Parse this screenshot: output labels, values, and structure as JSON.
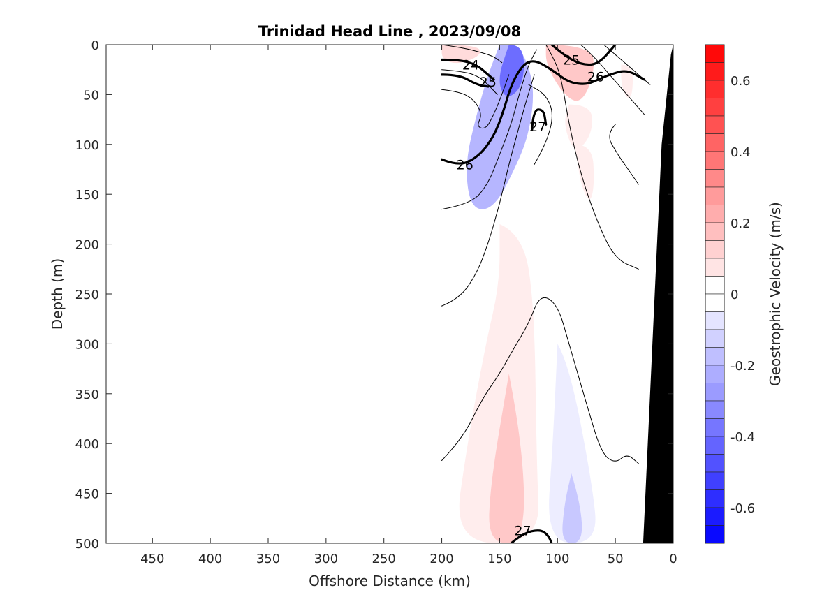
{
  "chart_data": {
    "type": "heatmap",
    "title": "Trinidad Head Line , 2023/09/08",
    "xlabel": "Offshore Distance (km)",
    "ylabel": "Depth (m)",
    "xlim": [
      490,
      0
    ],
    "ylim": [
      500,
      0
    ],
    "x_reversed": true,
    "y_reversed": true,
    "x_ticks": [
      "450",
      "400",
      "350",
      "300",
      "250",
      "200",
      "150",
      "100",
      "50",
      "0"
    ],
    "y_ticks": [
      "0",
      "50",
      "100",
      "150",
      "200",
      "250",
      "300",
      "350",
      "400",
      "450",
      "500"
    ],
    "colorbar": {
      "label": "Geostrophic Velocity (m/s)",
      "range": [
        -0.7,
        0.7
      ],
      "step": 0.05,
      "ticks": [
        "0.6",
        "0.4",
        "0.2",
        "0",
        "-0.2",
        "-0.4",
        "-0.6"
      ],
      "tick_values": [
        0.6,
        0.4,
        0.2,
        0,
        -0.2,
        -0.4,
        -0.6
      ],
      "colormap": "blue-white-red",
      "negative_color": "#0000ff",
      "positive_color": "#ff0000"
    },
    "velocity_patches": [
      {
        "v": -0.2,
        "points": [
          [
            150,
            0
          ],
          [
            135,
            0
          ],
          [
            125,
            20
          ],
          [
            120,
            50
          ],
          [
            125,
            90
          ],
          [
            135,
            120
          ],
          [
            155,
            165
          ],
          [
            175,
            165
          ],
          [
            180,
            120
          ],
          [
            170,
            70
          ],
          [
            160,
            30
          ]
        ]
      },
      {
        "v": -0.4,
        "points": [
          [
            142,
            0
          ],
          [
            132,
            0
          ],
          [
            128,
            20
          ],
          [
            132,
            45
          ],
          [
            145,
            55
          ],
          [
            152,
            35
          ]
        ]
      },
      {
        "v": 0.1,
        "points": [
          [
            200,
            0
          ],
          [
            170,
            0
          ],
          [
            165,
            10
          ],
          [
            185,
            20
          ],
          [
            200,
            15
          ]
        ]
      },
      {
        "v": 0.15,
        "points": [
          [
            110,
            0
          ],
          [
            70,
            0
          ],
          [
            68,
            30
          ],
          [
            80,
            60
          ],
          [
            95,
            50
          ],
          [
            110,
            20
          ]
        ]
      },
      {
        "v": 0.05,
        "points": [
          [
            90,
            60
          ],
          [
            70,
            60
          ],
          [
            70,
            90
          ],
          [
            85,
            110
          ],
          [
            95,
            80
          ]
        ]
      },
      {
        "v": 0.05,
        "points": [
          [
            85,
            100
          ],
          [
            70,
            100
          ],
          [
            68,
            140
          ],
          [
            72,
            160
          ],
          [
            80,
            140
          ]
        ]
      },
      {
        "v": 0.05,
        "points": [
          [
            45,
            20
          ],
          [
            35,
            20
          ],
          [
            35,
            50
          ],
          [
            40,
            55
          ],
          [
            45,
            40
          ]
        ]
      },
      {
        "v": 0.05,
        "points": [
          [
            150,
            180
          ],
          [
            130,
            190
          ],
          [
            120,
            260
          ],
          [
            118,
            420
          ],
          [
            115,
            500
          ],
          [
            190,
            500
          ],
          [
            178,
            400
          ],
          [
            162,
            300
          ],
          [
            150,
            240
          ]
        ]
      },
      {
        "v": 0.15,
        "points": [
          [
            142,
            330
          ],
          [
            130,
            400
          ],
          [
            128,
            500
          ],
          [
            160,
            500
          ],
          [
            158,
            440
          ]
        ]
      },
      {
        "v": -0.05,
        "points": [
          [
            100,
            300
          ],
          [
            90,
            320
          ],
          [
            70,
            440
          ],
          [
            65,
            500
          ],
          [
            110,
            500
          ],
          [
            104,
            400
          ]
        ]
      },
      {
        "v": -0.15,
        "points": [
          [
            88,
            430
          ],
          [
            80,
            460
          ],
          [
            78,
            500
          ],
          [
            97,
            500
          ],
          [
            94,
            460
          ]
        ]
      }
    ],
    "density_contours": [
      {
        "level": 24,
        "heavy": true,
        "points": [
          [
            200,
            15
          ],
          [
            185,
            15
          ],
          [
            170,
            20
          ],
          [
            160,
            30
          ],
          [
            155,
            35
          ]
        ]
      },
      {
        "level": 25,
        "heavy": true,
        "points": [
          [
            200,
            30
          ],
          [
            185,
            30
          ],
          [
            170,
            40
          ],
          [
            160,
            42
          ]
        ]
      },
      {
        "level": 25,
        "heavy": true,
        "points": [
          [
            105,
            0
          ],
          [
            95,
            10
          ],
          [
            80,
            20
          ],
          [
            65,
            20
          ],
          [
            50,
            0
          ]
        ]
      },
      {
        "level": 26,
        "heavy": true,
        "points": [
          [
            200,
            115
          ],
          [
            185,
            122
          ],
          [
            168,
            112
          ],
          [
            155,
            92
          ],
          [
            147,
            68
          ],
          [
            140,
            40
          ],
          [
            130,
            20
          ],
          [
            120,
            15
          ],
          [
            105,
            25
          ],
          [
            90,
            38
          ],
          [
            75,
            40
          ],
          [
            65,
            35
          ],
          [
            55,
            30
          ],
          [
            40,
            25
          ],
          [
            25,
            35
          ]
        ]
      },
      {
        "level": 27,
        "heavy": true,
        "points": [
          [
            122,
            85
          ],
          [
            121,
            65
          ],
          [
            112,
            65
          ],
          [
            110,
            80
          ]
        ]
      },
      {
        "level": 27,
        "heavy": true,
        "points": [
          [
            140,
            500
          ],
          [
            130,
            490
          ],
          [
            115,
            486
          ],
          [
            108,
            492
          ],
          [
            105,
            500
          ]
        ]
      },
      {
        "level": 0,
        "heavy": false,
        "points": [
          [
            200,
            0
          ],
          [
            182,
            3
          ],
          [
            165,
            8
          ],
          [
            155,
            12
          ],
          [
            148,
            18
          ]
        ]
      },
      {
        "level": 0,
        "heavy": false,
        "points": [
          [
            200,
            25
          ],
          [
            180,
            27
          ],
          [
            168,
            32
          ],
          [
            160,
            40
          ],
          [
            152,
            50
          ]
        ]
      },
      {
        "level": 0,
        "heavy": false,
        "points": [
          [
            200,
            45
          ],
          [
            185,
            47
          ],
          [
            172,
            55
          ],
          [
            165,
            70
          ],
          [
            170,
            82
          ],
          [
            162,
            85
          ],
          [
            155,
            70
          ],
          [
            148,
            50
          ],
          [
            142,
            30
          ]
        ]
      },
      {
        "level": 0,
        "heavy": false,
        "points": [
          [
            200,
            165
          ],
          [
            175,
            160
          ],
          [
            160,
            140
          ],
          [
            150,
            110
          ],
          [
            140,
            80
          ],
          [
            132,
            45
          ],
          [
            125,
            20
          ],
          [
            118,
            5
          ]
        ]
      },
      {
        "level": 0,
        "heavy": false,
        "points": [
          [
            200,
            262
          ],
          [
            185,
            255
          ],
          [
            170,
            230
          ],
          [
            160,
            200
          ],
          [
            150,
            160
          ],
          [
            142,
            120
          ],
          [
            135,
            90
          ],
          [
            128,
            60
          ],
          [
            120,
            30
          ]
        ]
      },
      {
        "level": 0,
        "heavy": false,
        "points": [
          [
            120,
            120
          ],
          [
            110,
            100
          ],
          [
            103,
            70
          ],
          [
            110,
            50
          ],
          [
            125,
            40
          ]
        ]
      },
      {
        "level": 0,
        "heavy": false,
        "points": [
          [
            110,
            0
          ],
          [
            100,
            20
          ],
          [
            95,
            45
          ],
          [
            90,
            80
          ],
          [
            80,
            130
          ],
          [
            65,
            180
          ],
          [
            50,
            215
          ],
          [
            30,
            225
          ]
        ]
      },
      {
        "level": 0,
        "heavy": false,
        "points": [
          [
            80,
            0
          ],
          [
            70,
            10
          ],
          [
            55,
            30
          ],
          [
            40,
            50
          ],
          [
            25,
            70
          ]
        ]
      },
      {
        "level": 0,
        "heavy": false,
        "points": [
          [
            60,
            0
          ],
          [
            45,
            15
          ],
          [
            30,
            30
          ],
          [
            20,
            40
          ]
        ]
      },
      {
        "level": 0,
        "heavy": false,
        "points": [
          [
            50,
            80
          ],
          [
            58,
            90
          ],
          [
            48,
            110
          ],
          [
            42,
            120
          ],
          [
            30,
            140
          ]
        ]
      },
      {
        "level": 0,
        "heavy": false,
        "points": [
          [
            200,
            417
          ],
          [
            182,
            395
          ],
          [
            165,
            355
          ],
          [
            150,
            330
          ],
          [
            138,
            305
          ],
          [
            125,
            280
          ],
          [
            115,
            250
          ],
          [
            100,
            260
          ],
          [
            90,
            300
          ],
          [
            75,
            360
          ],
          [
            62,
            410
          ],
          [
            50,
            420
          ],
          [
            40,
            410
          ],
          [
            30,
            420
          ]
        ]
      }
    ],
    "contour_labels": [
      {
        "text": "24",
        "x": 175,
        "y": 20
      },
      {
        "text": "25",
        "x": 160,
        "y": 37
      },
      {
        "text": "25",
        "x": 88,
        "y": 15
      },
      {
        "text": "26",
        "x": 67,
        "y": 32
      },
      {
        "text": "27",
        "x": 117,
        "y": 82
      },
      {
        "text": "26",
        "x": 180,
        "y": 120
      },
      {
        "text": "27",
        "x": 130,
        "y": 487
      }
    ],
    "bathymetry": {
      "color": "#000000",
      "points": [
        [
          0,
          0
        ],
        [
          0,
          500
        ],
        [
          26,
          500
        ],
        [
          10,
          100
        ],
        [
          2,
          10
        ]
      ]
    }
  }
}
